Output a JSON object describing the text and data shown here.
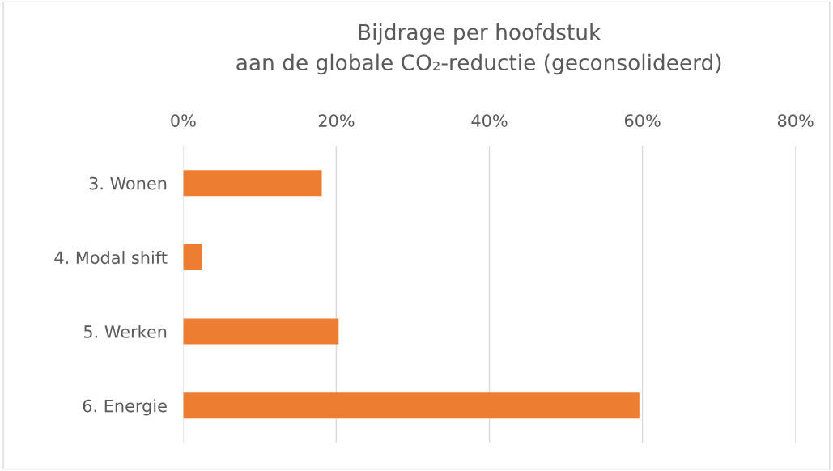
{
  "chart_data": {
    "type": "bar",
    "orientation": "horizontal",
    "title": "Bijdrage per hoofdstuk\naan de globale CO₂-reductie (geconsolideerd)",
    "categories": [
      "3. Wonen",
      "4. Modal shift",
      "5. Werken",
      "6. Energie"
    ],
    "values": [
      18.1,
      2.5,
      20.3,
      59.6
    ],
    "color": "#ed7d31",
    "xlim": [
      0,
      80
    ],
    "xticks": [
      {
        "value": 0,
        "label": "0%"
      },
      {
        "value": 20,
        "label": "20%"
      },
      {
        "value": 40,
        "label": "40%"
      },
      {
        "value": 60,
        "label": "60%"
      },
      {
        "value": 80,
        "label": "80%"
      }
    ],
    "grid": "x",
    "legend": false
  }
}
